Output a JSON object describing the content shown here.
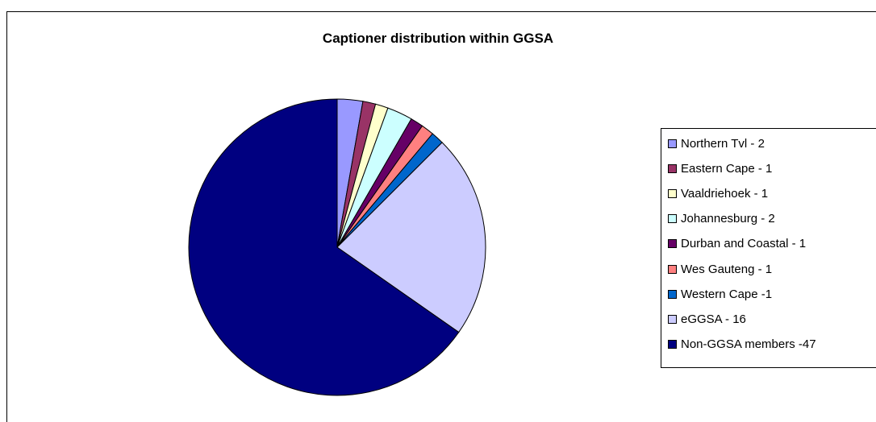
{
  "chart_data": {
    "type": "pie",
    "title": "Captioner distribution within GGSA",
    "slices": [
      {
        "label": "Northern Tvl - 2",
        "value": 2,
        "color": "#9999ff"
      },
      {
        "label": "Eastern Cape - 1",
        "value": 1,
        "color": "#993366"
      },
      {
        "label": "Vaaldriehoek - 1",
        "value": 1,
        "color": "#ffffcc"
      },
      {
        "label": "Johannesburg - 2",
        "value": 2,
        "color": "#ccffff"
      },
      {
        "label": "Durban and Coastal - 1",
        "value": 1,
        "color": "#660066"
      },
      {
        "label": "Wes Gauteng - 1",
        "value": 1,
        "color": "#ff8080"
      },
      {
        "label": "Western Cape -1",
        "value": 1,
        "color": "#0066cc"
      },
      {
        "label": "eGGSA - 16",
        "value": 16,
        "color": "#ccccff"
      },
      {
        "label": "Non-GGSA members -47",
        "value": 47,
        "color": "#000080"
      }
    ],
    "legend_position": "right"
  }
}
